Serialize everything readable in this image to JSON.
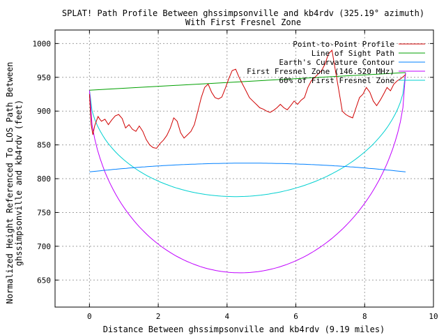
{
  "chart_data": {
    "type": "line",
    "title": "SPLAT! Path Profile Between ghssimpsonville and kb4rdv (325.19° azimuth)",
    "subtitle": "With First Fresnel Zone",
    "xlabel": "Distance Between ghssimpsonville and kb4rdv (9.19 miles)",
    "ylabel": [
      "Normalized Height Referenced To LOS Path Between",
      "ghssimpsonville and kb4rdv (feet)"
    ],
    "xlim": [
      -1,
      10
    ],
    "ylim": [
      610,
      1020
    ],
    "x_ticks": [
      0,
      2,
      4,
      6,
      8,
      10
    ],
    "y_ticks": [
      650,
      700,
      750,
      800,
      850,
      900,
      950,
      1000
    ],
    "grid": true,
    "legend_position": "top-right",
    "series": [
      {
        "name": "Point-to-Point Profile",
        "color": "#d00000",
        "points": [
          [
            0,
            925
          ],
          [
            0.05,
            880
          ],
          [
            0.1,
            865
          ],
          [
            0.15,
            878
          ],
          [
            0.2,
            885
          ],
          [
            0.25,
            892
          ],
          [
            0.3,
            888
          ],
          [
            0.35,
            885
          ],
          [
            0.45,
            888
          ],
          [
            0.55,
            880
          ],
          [
            0.65,
            887
          ],
          [
            0.75,
            893
          ],
          [
            0.85,
            895
          ],
          [
            0.95,
            889
          ],
          [
            1.05,
            875
          ],
          [
            1.15,
            880
          ],
          [
            1.25,
            873
          ],
          [
            1.35,
            870
          ],
          [
            1.45,
            878
          ],
          [
            1.55,
            870
          ],
          [
            1.65,
            858
          ],
          [
            1.75,
            850
          ],
          [
            1.85,
            846
          ],
          [
            1.95,
            845
          ],
          [
            2.05,
            852
          ],
          [
            2.15,
            857
          ],
          [
            2.25,
            864
          ],
          [
            2.35,
            875
          ],
          [
            2.45,
            890
          ],
          [
            2.55,
            885
          ],
          [
            2.65,
            868
          ],
          [
            2.75,
            860
          ],
          [
            2.85,
            865
          ],
          [
            2.95,
            870
          ],
          [
            3.05,
            880
          ],
          [
            3.15,
            900
          ],
          [
            3.25,
            920
          ],
          [
            3.35,
            935
          ],
          [
            3.45,
            940
          ],
          [
            3.55,
            928
          ],
          [
            3.65,
            920
          ],
          [
            3.75,
            918
          ],
          [
            3.85,
            921
          ],
          [
            3.95,
            934
          ],
          [
            4.05,
            948
          ],
          [
            4.15,
            960
          ],
          [
            4.25,
            962
          ],
          [
            4.35,
            950
          ],
          [
            4.45,
            940
          ],
          [
            4.55,
            930
          ],
          [
            4.65,
            920
          ],
          [
            4.75,
            915
          ],
          [
            4.85,
            910
          ],
          [
            4.95,
            905
          ],
          [
            5.05,
            903
          ],
          [
            5.15,
            900
          ],
          [
            5.25,
            898
          ],
          [
            5.35,
            901
          ],
          [
            5.45,
            905
          ],
          [
            5.55,
            910
          ],
          [
            5.65,
            905
          ],
          [
            5.75,
            902
          ],
          [
            5.85,
            908
          ],
          [
            5.95,
            915
          ],
          [
            6.05,
            910
          ],
          [
            6.15,
            916
          ],
          [
            6.25,
            920
          ],
          [
            6.35,
            935
          ],
          [
            6.45,
            945
          ],
          [
            6.55,
            950
          ],
          [
            6.65,
            955
          ],
          [
            6.75,
            960
          ],
          [
            6.85,
            970
          ],
          [
            6.95,
            985
          ],
          [
            7.05,
            990
          ],
          [
            7.15,
            960
          ],
          [
            7.25,
            930
          ],
          [
            7.35,
            900
          ],
          [
            7.45,
            895
          ],
          [
            7.55,
            892
          ],
          [
            7.65,
            890
          ],
          [
            7.75,
            905
          ],
          [
            7.85,
            920
          ],
          [
            7.95,
            925
          ],
          [
            8.05,
            935
          ],
          [
            8.15,
            928
          ],
          [
            8.25,
            915
          ],
          [
            8.35,
            908
          ],
          [
            8.45,
            916
          ],
          [
            8.55,
            925
          ],
          [
            8.65,
            935
          ],
          [
            8.75,
            930
          ],
          [
            8.85,
            940
          ],
          [
            8.95,
            945
          ],
          [
            9.05,
            948
          ],
          [
            9.19,
            954
          ]
        ]
      },
      {
        "name": "Line of Sight Path",
        "color": "#00a000",
        "points": [
          [
            0,
            931
          ],
          [
            9.19,
            957
          ]
        ]
      },
      {
        "name": "Earth's Curvature Contour",
        "color": "#0080ff",
        "curve": {
          "kind": "arc",
          "from": [
            0,
            810
          ],
          "to": [
            9.19,
            810
          ],
          "peak": 823
        }
      },
      {
        "name": "First Fresnel Zone (146.520 MHz)",
        "color": "#c000ff",
        "curve": {
          "kind": "fresnel",
          "from": [
            0,
            931
          ],
          "to": [
            9.19,
            957
          ],
          "depth": 283
        }
      },
      {
        "name": "60% of First Fresnel Zone",
        "color": "#00d0d0",
        "curve": {
          "kind": "fresnel",
          "from": [
            0,
            931
          ],
          "to": [
            9.19,
            957
          ],
          "depth": 170
        }
      }
    ]
  }
}
